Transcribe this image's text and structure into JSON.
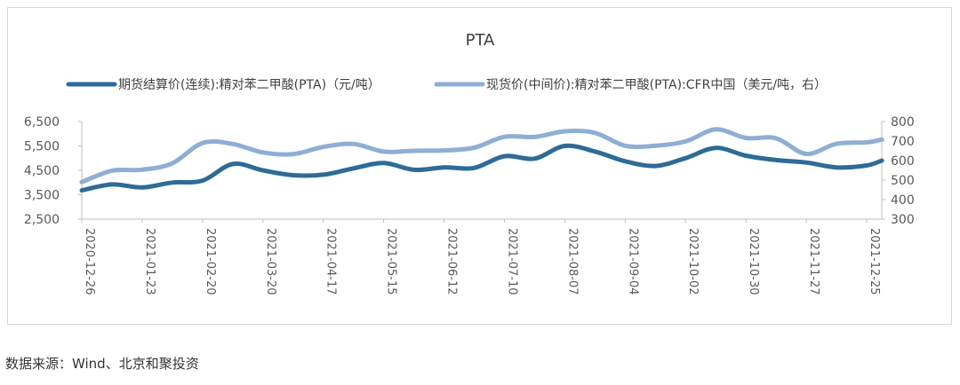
{
  "chart_data": {
    "type": "line",
    "title": "PTA",
    "x": [
      "2020-12-26",
      "2021-01-09",
      "2021-01-23",
      "2021-02-06",
      "2021-02-20",
      "2021-03-06",
      "2021-03-20",
      "2021-04-03",
      "2021-04-17",
      "2021-05-01",
      "2021-05-15",
      "2021-05-29",
      "2021-06-12",
      "2021-06-26",
      "2021-07-10",
      "2021-07-24",
      "2021-08-07",
      "2021-08-21",
      "2021-09-04",
      "2021-09-18",
      "2021-10-02",
      "2021-10-16",
      "2021-10-30",
      "2021-11-13",
      "2021-11-27",
      "2021-12-11",
      "2021-12-25",
      "2022-01-01"
    ],
    "x_tick_labels": [
      "2020-12-26",
      "2021-01-23",
      "2021-02-20",
      "2021-03-20",
      "2021-04-17",
      "2021-05-15",
      "2021-06-12",
      "2021-07-10",
      "2021-08-07",
      "2021-09-04",
      "2021-10-02",
      "2021-10-30",
      "2021-11-27",
      "2021-12-25"
    ],
    "y_left": {
      "ylim": [
        2500,
        6500
      ],
      "ticks": [
        "2,500",
        "3,500",
        "4,500",
        "5,500",
        "6,500"
      ],
      "tick_values": [
        2500,
        3500,
        4500,
        5500,
        6500
      ]
    },
    "y_right": {
      "ylim": [
        300,
        800
      ],
      "ticks": [
        "300",
        "400",
        "500",
        "600",
        "700",
        "800"
      ],
      "tick_values": [
        300,
        400,
        500,
        600,
        700,
        800
      ]
    },
    "series": [
      {
        "name": "期货结算价(连续):精对苯二甲酸(PTA)（元/吨）",
        "axis": "left",
        "color": "#2e6b97",
        "values": [
          3680,
          3920,
          3800,
          4000,
          4080,
          4760,
          4500,
          4300,
          4320,
          4580,
          4800,
          4520,
          4620,
          4600,
          5080,
          4980,
          5500,
          5270,
          4870,
          4680,
          5000,
          5420,
          5100,
          4920,
          4820,
          4620,
          4700,
          4900
        ]
      },
      {
        "name": "现货价(中间价):精对苯二甲酸(PTA):CFR中国（美元/吨，右）",
        "axis": "right",
        "color": "#8faed4",
        "values": [
          490,
          548,
          553,
          586,
          690,
          685,
          642,
          633,
          670,
          685,
          646,
          650,
          652,
          666,
          722,
          721,
          750,
          742,
          676,
          676,
          698,
          760,
          716,
          714,
          634,
          686,
          693,
          708
        ]
      }
    ],
    "grid": false,
    "legend_position": "top"
  },
  "source_note": "数据来源：Wind、北京和聚投资"
}
